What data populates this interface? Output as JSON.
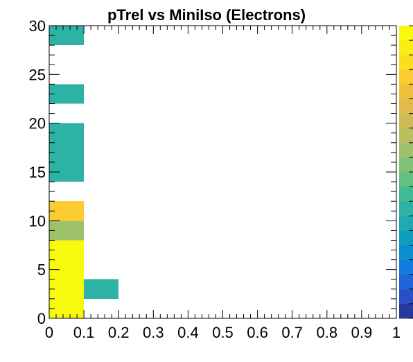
{
  "chart_data": {
    "type": "heatmap",
    "title": "pTrel vs MiniIso (Electrons)",
    "xlabel": "",
    "ylabel": "",
    "xlim": [
      0,
      1
    ],
    "ylim": [
      0,
      30
    ],
    "x_bin_width": 0.1,
    "y_bin_width": 2,
    "x_tick_labels": [
      "0",
      "0.1",
      "0.2",
      "0.3",
      "0.4",
      "0.5",
      "0.6",
      "0.7",
      "0.8",
      "0.9",
      "1"
    ],
    "y_tick_labels": [
      "0",
      "5",
      "10",
      "15",
      "20",
      "25",
      "30"
    ],
    "cells": [
      {
        "x": 0.0,
        "y": 0,
        "level": 1.0
      },
      {
        "x": 0.0,
        "y": 2,
        "level": 1.0
      },
      {
        "x": 0.0,
        "y": 4,
        "level": 1.0
      },
      {
        "x": 0.0,
        "y": 6,
        "level": 1.0
      },
      {
        "x": 0.1,
        "y": 2,
        "level": 0.35
      },
      {
        "x": 0.0,
        "y": 8,
        "level": 0.6
      },
      {
        "x": 0.0,
        "y": 10,
        "level": 0.85
      },
      {
        "x": 0.0,
        "y": 14,
        "level": 0.35
      },
      {
        "x": 0.0,
        "y": 16,
        "level": 0.35
      },
      {
        "x": 0.0,
        "y": 18,
        "level": 0.35
      },
      {
        "x": 0.0,
        "y": 22,
        "level": 0.35
      },
      {
        "x": 0.0,
        "y": 28,
        "level": 0.35
      }
    ],
    "colorbar": {
      "colors": [
        "#243a9e",
        "#2a50c6",
        "#1f67d9",
        "#117cdb",
        "#0b8ed2",
        "#0e9ec2",
        "#1ea9b3",
        "#2db3a5",
        "#42bb95",
        "#62c083",
        "#80c275",
        "#9ec16b",
        "#b9bf60",
        "#cebb57",
        "#dfbb4a",
        "#f0c03b",
        "#fbcb31",
        "#fbdd22",
        "#f8ed14",
        "#f8fa0d"
      ]
    },
    "grid": false,
    "legend": "none"
  }
}
